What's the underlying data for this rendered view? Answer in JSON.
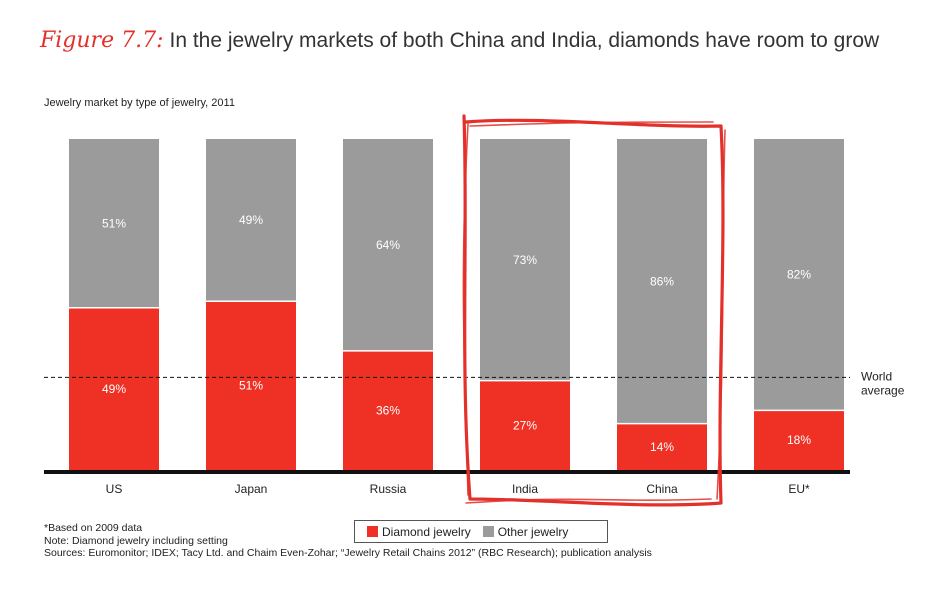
{
  "header": {
    "figure_label": "Figure 7.7:",
    "title": "In the jewelry markets of both China and India, diamonds have room to grow"
  },
  "colors": {
    "diamond": "#ee3124",
    "other": "#9b9b9b",
    "highlight": "#e3302a"
  },
  "chart_data": {
    "type": "bar",
    "stacked": true,
    "title": "Jewelry market by type of jewelry, 2011",
    "categories": [
      "US",
      "Japan",
      "Russia",
      "India",
      "China",
      "EU*"
    ],
    "series": [
      {
        "name": "Diamond jewelry",
        "values": [
          49,
          51,
          36,
          27,
          14,
          18
        ],
        "labels": [
          "49%",
          "51%",
          "36%",
          "27%",
          "14%",
          "18%"
        ]
      },
      {
        "name": "Other jewelry",
        "values": [
          51,
          49,
          64,
          73,
          86,
          82
        ],
        "labels": [
          "51%",
          "49%",
          "64%",
          "73%",
          "86%",
          "82%"
        ]
      }
    ],
    "ylim": [
      0,
      100
    ],
    "reference_line": {
      "label_line1": "World",
      "label_line2": "average",
      "value": 28
    },
    "highlighted_categories": [
      "India",
      "China"
    ],
    "grid": false
  },
  "legend": {
    "diamond_label": "Diamond jewelry",
    "other_label": "Other jewelry"
  },
  "notes": {
    "note1": "*Based on 2009 data",
    "note2": "Note: Diamond jewelry including setting",
    "sources": "Sources: Euromonitor; IDEX; Tacy Ltd. and Chaim Even-Zohar; “Jewelry Retail Chains 2012” (RBC Research); publication analysis"
  }
}
